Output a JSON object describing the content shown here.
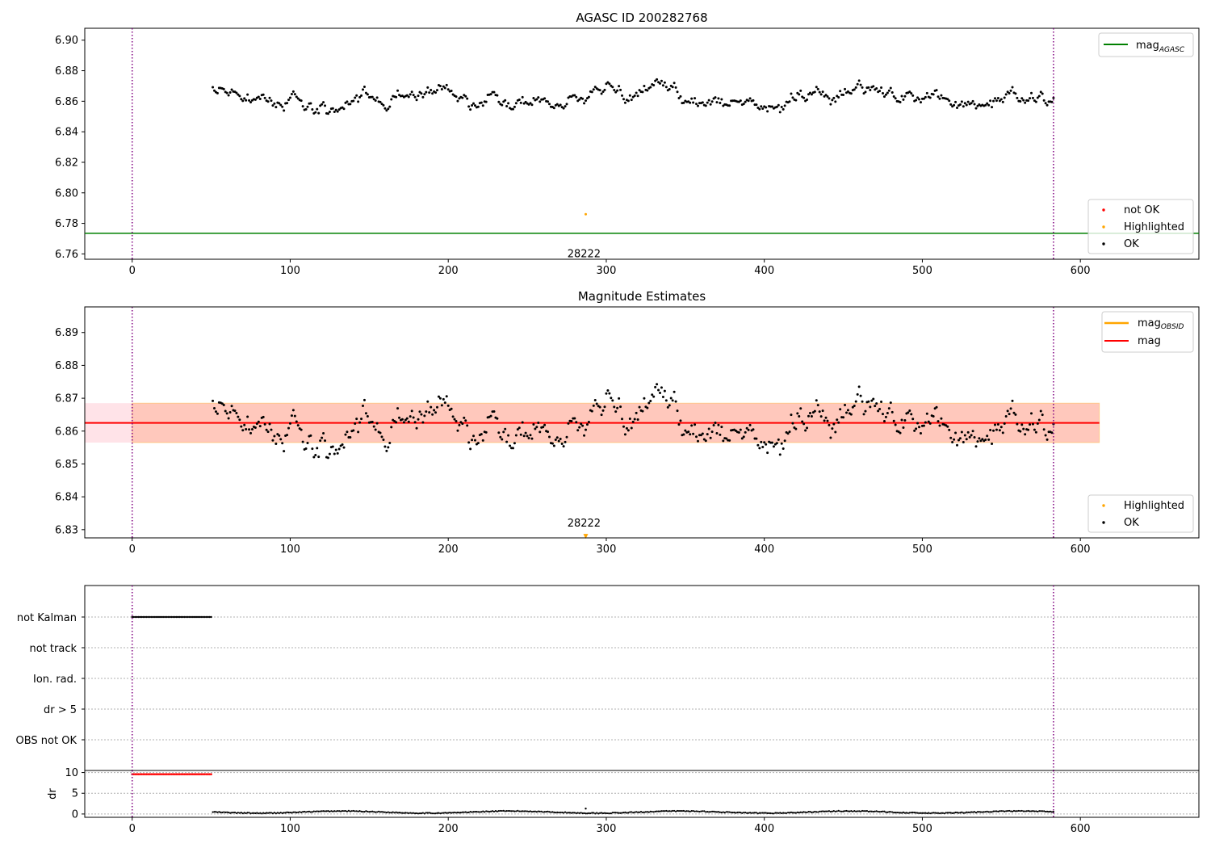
{
  "chart_data": [
    {
      "type": "scatter",
      "title": "AGASC ID 200282768",
      "xlim": [
        -30,
        675
      ],
      "ylim": [
        6.7565,
        6.9078
      ],
      "xticks": [
        0,
        100,
        200,
        300,
        400,
        500,
        600
      ],
      "yticks": [
        6.76,
        6.78,
        6.8,
        6.82,
        6.84,
        6.86,
        6.88,
        6.9
      ],
      "vlines": [
        0,
        583
      ],
      "hline": {
        "name": "mag_AGASC",
        "value": 6.7735,
        "color": "#008000"
      },
      "legend_lines": [
        {
          "label": "mag",
          "sub": "AGASC",
          "color": "#008000"
        }
      ],
      "legend_points": [
        {
          "label": "not OK",
          "color": "#ff0000"
        },
        {
          "label": "Highlighted",
          "color": "#ffa500"
        },
        {
          "label": "OK",
          "color": "#000000"
        }
      ],
      "annotation": {
        "text": "28222",
        "x": 290,
        "y": 6.7605
      },
      "highlighted": {
        "x": 287,
        "y": 6.786
      },
      "ok_series": {
        "x_start": 51,
        "x_end": 583,
        "baseline": 6.862,
        "noise": 0.006
      }
    },
    {
      "type": "scatter",
      "title": "Magnitude Estimates",
      "xlim": [
        -30,
        675
      ],
      "ylim": [
        6.8275,
        6.8978
      ],
      "xticks": [
        0,
        100,
        200,
        300,
        400,
        500,
        600
      ],
      "yticks": [
        6.83,
        6.84,
        6.85,
        6.86,
        6.87,
        6.88,
        6.89
      ],
      "vlines": [
        0,
        583
      ],
      "mag": {
        "value": 6.8625,
        "color": "#ff0000"
      },
      "mag_obsid": {
        "value": 6.8625,
        "color": "#ffa500"
      },
      "band_outer": {
        "y0": 6.8565,
        "y1": 6.8685,
        "x0": -30,
        "x1": 612,
        "color": "#ffc0cb"
      },
      "band_inner": {
        "y0": 6.8565,
        "y1": 6.8685,
        "x0": 0,
        "x1": 612,
        "color": "#ffa07a"
      },
      "legend_lines": [
        {
          "label": "mag",
          "sub": "OBSID",
          "color": "#ffa500"
        },
        {
          "label": "mag",
          "sub": "",
          "color": "#ff0000"
        }
      ],
      "legend_points": [
        {
          "label": "Highlighted",
          "color": "#ffa500"
        },
        {
          "label": "OK",
          "color": "#000000"
        }
      ],
      "annotation": {
        "text": "28222",
        "x": 290,
        "y": 6.8305
      },
      "highlighted_marker": {
        "x": 287,
        "y": 6.8277
      },
      "ok_series": {
        "x_start": 51,
        "x_end": 583,
        "baseline": 6.862,
        "noise": 0.006
      }
    },
    {
      "type": "scatter",
      "title": "",
      "xlim": [
        -30,
        675
      ],
      "categories": [
        "not Kalman",
        "not track",
        "Ion. rad.",
        "dr > 5",
        "OBS not OK"
      ],
      "vlines": [
        0,
        583
      ],
      "flags": [
        {
          "category": "not Kalman",
          "x_start": 0,
          "x_end": 50
        }
      ]
    },
    {
      "type": "scatter",
      "title": "",
      "xlim": [
        -30,
        675
      ],
      "ylim": [
        -0.8,
        10.5
      ],
      "xticks": [
        0,
        100,
        200,
        300,
        400,
        500,
        600
      ],
      "yticks": [
        0,
        5,
        10
      ],
      "ylabel": "dr",
      "vlines": [
        0,
        583
      ],
      "red_series": {
        "x_start": 0,
        "x_end": 50,
        "y": 9.6,
        "color": "#ff0000"
      },
      "black_series": {
        "x_start": 51,
        "x_end": 583,
        "color": "#000000"
      },
      "spike": {
        "x": 287,
        "y": 1.3
      }
    }
  ]
}
